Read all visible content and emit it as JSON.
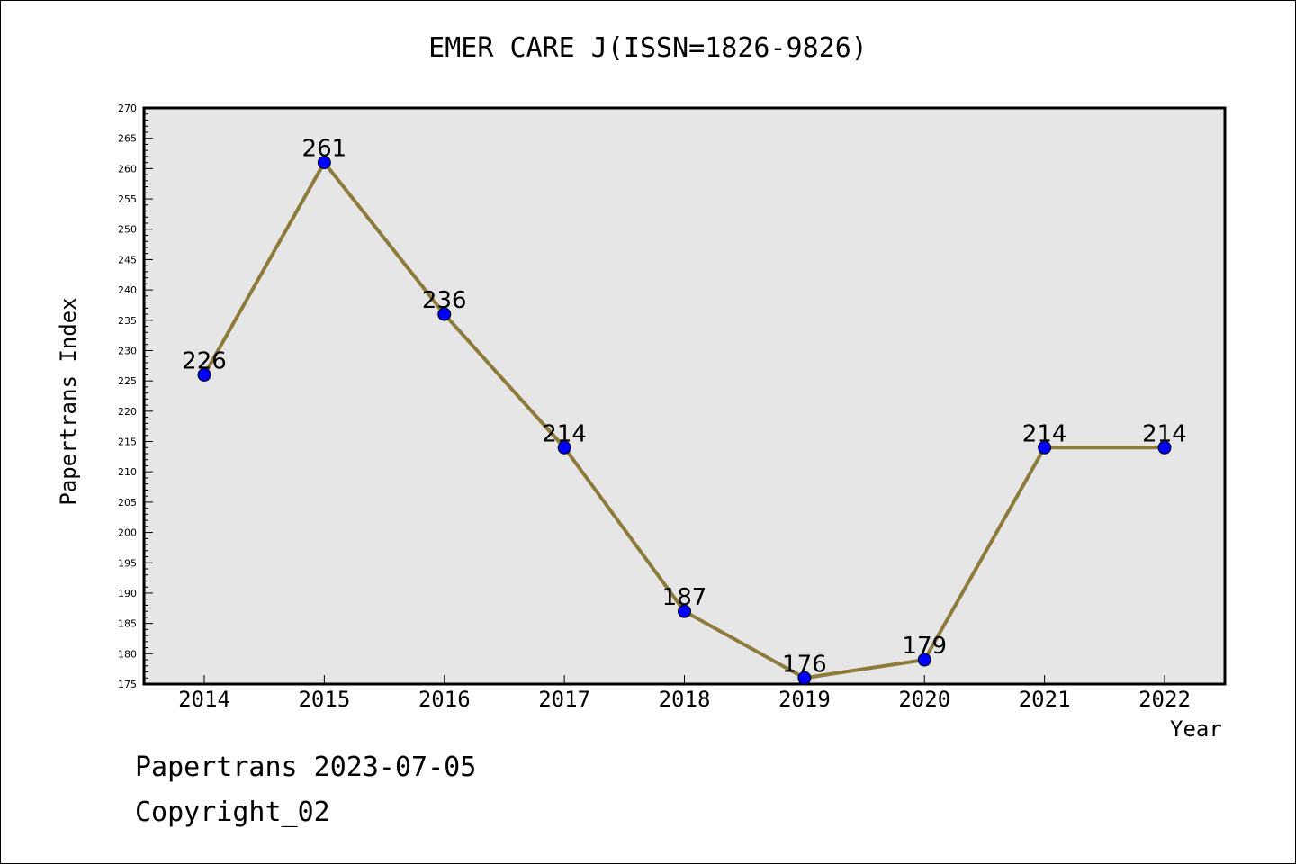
{
  "chart_data": {
    "type": "line",
    "title": "EMER CARE J(ISSN=1826-9826)",
    "xlabel": "Year",
    "ylabel": "Papertrans Index",
    "categories": [
      "2014",
      "2015",
      "2016",
      "2017",
      "2018",
      "2019",
      "2020",
      "2021",
      "2022"
    ],
    "series": [
      {
        "values": [
          226,
          261,
          236,
          214,
          187,
          176,
          179,
          214,
          214
        ]
      }
    ],
    "ylim": [
      175,
      270
    ],
    "yticks": [
      175,
      180,
      185,
      190,
      195,
      200,
      205,
      210,
      215,
      220,
      225,
      230,
      235,
      240,
      245,
      250,
      255,
      260,
      265,
      270
    ],
    "grid": false,
    "legend": "none",
    "colors": {
      "line": "#8c7b3a",
      "marker": "#0000ff",
      "plot_background": "#e6e6e6"
    }
  },
  "footer": {
    "line1": "Papertrans 2023-07-05",
    "line2": "Copyright_02"
  }
}
